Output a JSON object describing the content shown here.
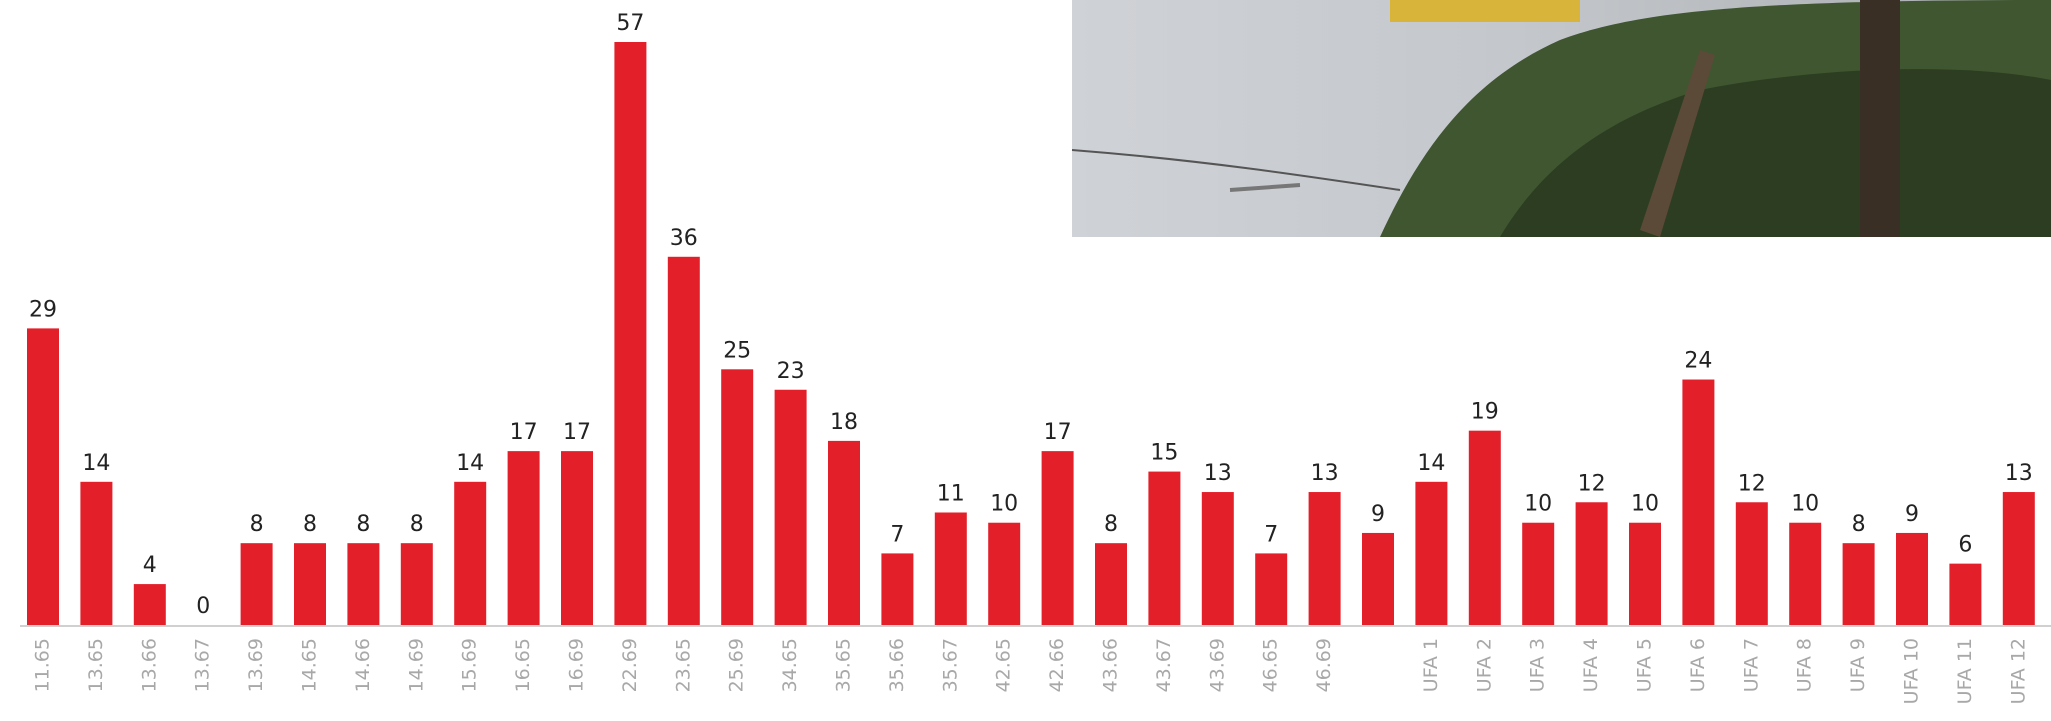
{
  "chart_data": {
    "type": "bar",
    "categories": [
      "11.65",
      "13.65",
      "13.66",
      "13.67",
      "13.69",
      "14.65",
      "14.66",
      "14.69",
      "15.69",
      "16.65",
      "16.69",
      "22.69",
      "23.65",
      "25.69",
      "34.65",
      "35.65",
      "35.66",
      "35.67",
      "42.65",
      "42.66",
      "43.66",
      "43.67",
      "43.69",
      "46.65",
      "46.69",
      null,
      "UFA 1",
      "UFA 2",
      "UFA 3",
      "UFA 4",
      "UFA 5",
      "UFA 6",
      "UFA 7",
      "UFA 8",
      "UFA 9",
      "UFA 10",
      "UFA 11",
      "UFA 12"
    ],
    "values": [
      29,
      14,
      4,
      0,
      8,
      8,
      8,
      8,
      14,
      17,
      17,
      57,
      36,
      25,
      23,
      18,
      7,
      11,
      10,
      17,
      8,
      15,
      13,
      7,
      13,
      9,
      14,
      19,
      10,
      12,
      10,
      24,
      12,
      10,
      8,
      9,
      6,
      13
    ],
    "color": "#e3202a",
    "ylim": [
      0,
      57
    ]
  }
}
